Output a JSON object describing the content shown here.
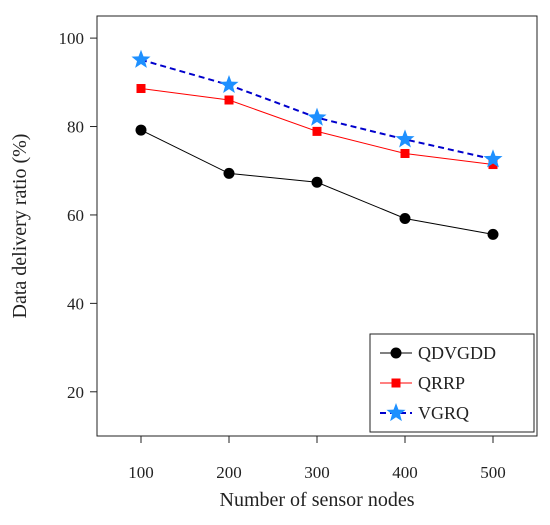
{
  "chart_data": {
    "type": "line",
    "title": "",
    "xlabel": "Number of sensor nodes",
    "ylabel": "Data delivery ratio (%)",
    "x": [
      100,
      200,
      300,
      400,
      500
    ],
    "xlim": [
      50,
      550
    ],
    "ylim": [
      10,
      105
    ],
    "xticks": [
      100,
      200,
      300,
      400,
      500
    ],
    "yticks": [
      20,
      40,
      60,
      80,
      100
    ],
    "grid": false,
    "legend_position": "bottom-right",
    "series": [
      {
        "name": "QDVGDD",
        "values": [
          79.2,
          69.4,
          67.4,
          59.2,
          55.6
        ],
        "color": "#000000",
        "marker": "circle",
        "line_style": "solid"
      },
      {
        "name": "QRRP",
        "values": [
          88.6,
          86.0,
          78.9,
          73.9,
          71.4
        ],
        "color": "#ff0000",
        "marker": "square",
        "line_style": "solid"
      },
      {
        "name": "VGRQ",
        "values": [
          95.1,
          89.4,
          82.0,
          77.1,
          72.6
        ],
        "color": "#0000cc",
        "marker_color": "#1e90ff",
        "marker": "star",
        "line_style": "dashed"
      }
    ]
  }
}
